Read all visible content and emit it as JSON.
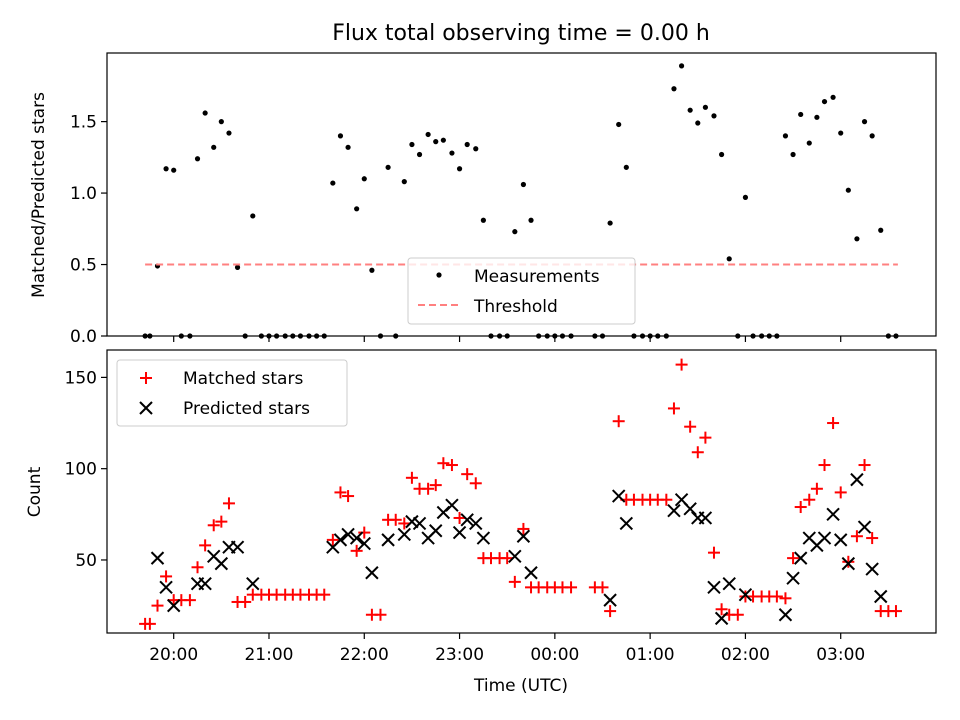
{
  "title": "Flux total observing time = 0.00 h",
  "chart_data": [
    {
      "type": "scatter",
      "title": "Flux total observing time = 0.00 h",
      "xlabel": "",
      "ylabel": "Matched/Predicted stars",
      "x_tick_labels": [
        "20:00",
        "21:00",
        "22:00",
        "23:00",
        "00:00",
        "01:00",
        "02:00",
        "03:00"
      ],
      "x_tick_hours": [
        20,
        21,
        22,
        23,
        24,
        25,
        26,
        27
      ],
      "xlim": [
        19.3,
        28.0
      ],
      "y_ticks": [
        0.0,
        0.5,
        1.0,
        1.5
      ],
      "y_tick_labels": [
        "0.0",
        "0.5",
        "1.0",
        "1.5"
      ],
      "ylim": [
        0.0,
        1.98
      ],
      "legend_position": "bottom-center",
      "series": [
        {
          "name": "Measurements",
          "style": "dot",
          "color": "#000000",
          "points": [
            [
              19.7,
              0
            ],
            [
              19.75,
              0
            ],
            [
              19.83,
              0.49
            ],
            [
              19.92,
              1.17
            ],
            [
              20.0,
              1.16
            ],
            [
              20.08,
              0
            ],
            [
              20.17,
              0
            ],
            [
              20.25,
              1.24
            ],
            [
              20.33,
              1.56
            ],
            [
              20.42,
              1.32
            ],
            [
              20.5,
              1.5
            ],
            [
              20.58,
              1.42
            ],
            [
              20.67,
              0.48
            ],
            [
              20.75,
              0
            ],
            [
              20.83,
              0.84
            ],
            [
              20.92,
              0
            ],
            [
              21.0,
              0
            ],
            [
              21.08,
              0
            ],
            [
              21.17,
              0
            ],
            [
              21.25,
              0
            ],
            [
              21.33,
              0
            ],
            [
              21.42,
              0
            ],
            [
              21.5,
              0
            ],
            [
              21.58,
              0
            ],
            [
              21.67,
              1.07
            ],
            [
              21.75,
              1.4
            ],
            [
              21.83,
              1.32
            ],
            [
              21.92,
              0.89
            ],
            [
              22.0,
              1.1
            ],
            [
              22.08,
              0.46
            ],
            [
              22.17,
              0
            ],
            [
              22.25,
              1.18
            ],
            [
              22.33,
              0
            ],
            [
              22.42,
              1.08
            ],
            [
              22.5,
              1.34
            ],
            [
              22.58,
              1.27
            ],
            [
              22.67,
              1.41
            ],
            [
              22.75,
              1.36
            ],
            [
              22.83,
              1.37
            ],
            [
              22.92,
              1.28
            ],
            [
              23.0,
              1.17
            ],
            [
              23.08,
              1.34
            ],
            [
              23.17,
              1.31
            ],
            [
              23.25,
              0.81
            ],
            [
              23.33,
              0
            ],
            [
              23.42,
              0
            ],
            [
              23.5,
              0
            ],
            [
              23.58,
              0.73
            ],
            [
              23.67,
              1.06
            ],
            [
              23.75,
              0.81
            ],
            [
              23.83,
              0
            ],
            [
              23.92,
              0
            ],
            [
              24.0,
              0
            ],
            [
              24.08,
              0
            ],
            [
              24.17,
              0
            ],
            [
              24.42,
              0
            ],
            [
              24.5,
              0
            ],
            [
              24.58,
              0.79
            ],
            [
              24.67,
              1.48
            ],
            [
              24.75,
              1.18
            ],
            [
              24.83,
              0
            ],
            [
              24.92,
              0
            ],
            [
              25.0,
              0
            ],
            [
              25.08,
              0
            ],
            [
              25.17,
              0
            ],
            [
              25.25,
              1.73
            ],
            [
              25.33,
              1.89
            ],
            [
              25.42,
              1.58
            ],
            [
              25.5,
              1.49
            ],
            [
              25.58,
              1.6
            ],
            [
              25.67,
              1.54
            ],
            [
              25.75,
              1.27
            ],
            [
              25.83,
              0.54
            ],
            [
              25.92,
              0
            ],
            [
              26.0,
              0.97
            ],
            [
              26.08,
              0
            ],
            [
              26.17,
              0
            ],
            [
              26.25,
              0
            ],
            [
              26.33,
              0
            ],
            [
              26.42,
              1.4
            ],
            [
              26.5,
              1.27
            ],
            [
              26.58,
              1.55
            ],
            [
              26.67,
              1.35
            ],
            [
              26.75,
              1.53
            ],
            [
              26.83,
              1.64
            ],
            [
              26.92,
              1.67
            ],
            [
              27.0,
              1.42
            ],
            [
              27.08,
              1.02
            ],
            [
              27.17,
              0.68
            ],
            [
              27.25,
              1.5
            ],
            [
              27.33,
              1.4
            ],
            [
              27.42,
              0.74
            ],
            [
              27.5,
              0
            ],
            [
              27.58,
              0
            ]
          ]
        },
        {
          "name": "Threshold",
          "style": "dashed-line",
          "color": "#ff8080",
          "x_range": [
            19.7,
            27.6
          ],
          "y": 0.5
        }
      ]
    },
    {
      "type": "scatter",
      "xlabel": "Time (UTC)",
      "ylabel": "Count",
      "x_tick_labels": [
        "20:00",
        "21:00",
        "22:00",
        "23:00",
        "00:00",
        "01:00",
        "02:00",
        "03:00"
      ],
      "x_tick_hours": [
        20,
        21,
        22,
        23,
        24,
        25,
        26,
        27
      ],
      "xlim": [
        19.3,
        28.0
      ],
      "y_ticks": [
        50,
        100,
        150
      ],
      "y_tick_labels": [
        "50",
        "100",
        "150"
      ],
      "ylim": [
        10,
        165
      ],
      "legend_position": "top-left",
      "series": [
        {
          "name": "Matched stars",
          "style": "plus",
          "color": "#ff0000",
          "points": [
            [
              19.7,
              15
            ],
            [
              19.75,
              15
            ],
            [
              19.83,
              25
            ],
            [
              19.92,
              41
            ],
            [
              20.0,
              28
            ],
            [
              20.08,
              28
            ],
            [
              20.17,
              28
            ],
            [
              20.25,
              46
            ],
            [
              20.33,
              58
            ],
            [
              20.42,
              69
            ],
            [
              20.5,
              71
            ],
            [
              20.58,
              81
            ],
            [
              20.67,
              27
            ],
            [
              20.75,
              27
            ],
            [
              20.83,
              31
            ],
            [
              20.92,
              31
            ],
            [
              21.0,
              31
            ],
            [
              21.08,
              31
            ],
            [
              21.17,
              31
            ],
            [
              21.25,
              31
            ],
            [
              21.33,
              31
            ],
            [
              21.42,
              31
            ],
            [
              21.5,
              31
            ],
            [
              21.58,
              31
            ],
            [
              21.67,
              61
            ],
            [
              21.75,
              87
            ],
            [
              21.83,
              85
            ],
            [
              21.92,
              55
            ],
            [
              22.0,
              65
            ],
            [
              22.08,
              20
            ],
            [
              22.17,
              20
            ],
            [
              22.25,
              72
            ],
            [
              22.33,
              72
            ],
            [
              22.42,
              70
            ],
            [
              22.5,
              95
            ],
            [
              22.58,
              89
            ],
            [
              22.67,
              89
            ],
            [
              22.75,
              91
            ],
            [
              22.83,
              103
            ],
            [
              22.92,
              102
            ],
            [
              23.0,
              73
            ],
            [
              23.08,
              97
            ],
            [
              23.17,
              92
            ],
            [
              23.25,
              51
            ],
            [
              23.33,
              51
            ],
            [
              23.42,
              51
            ],
            [
              23.5,
              51
            ],
            [
              23.58,
              38
            ],
            [
              23.67,
              67
            ],
            [
              23.75,
              35
            ],
            [
              23.83,
              35
            ],
            [
              23.92,
              35
            ],
            [
              24.0,
              35
            ],
            [
              24.08,
              35
            ],
            [
              24.17,
              35
            ],
            [
              24.42,
              35
            ],
            [
              24.5,
              35
            ],
            [
              24.58,
              22
            ],
            [
              24.67,
              126
            ],
            [
              24.75,
              83
            ],
            [
              24.83,
              83
            ],
            [
              24.92,
              83
            ],
            [
              25.0,
              83
            ],
            [
              25.08,
              83
            ],
            [
              25.17,
              83
            ],
            [
              25.25,
              133
            ],
            [
              25.33,
              157
            ],
            [
              25.42,
              123
            ],
            [
              25.5,
              109
            ],
            [
              25.58,
              117
            ],
            [
              25.67,
              54
            ],
            [
              25.75,
              23
            ],
            [
              25.83,
              20
            ],
            [
              25.92,
              20
            ],
            [
              26.0,
              30
            ],
            [
              26.08,
              30
            ],
            [
              26.17,
              30
            ],
            [
              26.25,
              30
            ],
            [
              26.33,
              30
            ],
            [
              26.42,
              29
            ],
            [
              26.5,
              51
            ],
            [
              26.58,
              79
            ],
            [
              26.67,
              83
            ],
            [
              26.75,
              89
            ],
            [
              26.83,
              102
            ],
            [
              26.92,
              125
            ],
            [
              27.0,
              87
            ],
            [
              27.08,
              49
            ],
            [
              27.17,
              63
            ],
            [
              27.25,
              102
            ],
            [
              27.33,
              62
            ],
            [
              27.42,
              22
            ],
            [
              27.5,
              22
            ],
            [
              27.58,
              22
            ]
          ]
        },
        {
          "name": "Predicted stars",
          "style": "x",
          "color": "#000000",
          "points": [
            [
              19.83,
              51
            ],
            [
              19.92,
              35
            ],
            [
              20.0,
              25
            ],
            [
              20.25,
              37
            ],
            [
              20.33,
              37
            ],
            [
              20.42,
              52
            ],
            [
              20.5,
              48
            ],
            [
              20.58,
              57
            ],
            [
              20.67,
              57
            ],
            [
              20.83,
              37
            ],
            [
              21.67,
              57
            ],
            [
              21.75,
              61
            ],
            [
              21.83,
              64
            ],
            [
              21.92,
              62
            ],
            [
              22.0,
              59
            ],
            [
              22.08,
              43
            ],
            [
              22.25,
              61
            ],
            [
              22.42,
              64
            ],
            [
              22.5,
              71
            ],
            [
              22.58,
              70
            ],
            [
              22.67,
              62
            ],
            [
              22.75,
              66
            ],
            [
              22.83,
              76
            ],
            [
              22.92,
              80
            ],
            [
              23.0,
              65
            ],
            [
              23.08,
              72
            ],
            [
              23.17,
              70
            ],
            [
              23.25,
              62
            ],
            [
              23.58,
              52
            ],
            [
              23.67,
              63
            ],
            [
              23.75,
              43
            ],
            [
              24.58,
              28
            ],
            [
              24.67,
              85
            ],
            [
              24.75,
              70
            ],
            [
              25.25,
              77
            ],
            [
              25.33,
              83
            ],
            [
              25.42,
              78
            ],
            [
              25.5,
              73
            ],
            [
              25.58,
              73
            ],
            [
              25.67,
              35
            ],
            [
              25.75,
              18
            ],
            [
              25.83,
              37
            ],
            [
              26.0,
              31
            ],
            [
              26.42,
              20
            ],
            [
              26.5,
              40
            ],
            [
              26.58,
              51
            ],
            [
              26.67,
              62
            ],
            [
              26.75,
              58
            ],
            [
              26.83,
              62
            ],
            [
              26.92,
              75
            ],
            [
              27.0,
              61
            ],
            [
              27.08,
              48
            ],
            [
              27.17,
              94
            ],
            [
              27.25,
              68
            ],
            [
              27.33,
              45
            ],
            [
              27.42,
              30
            ]
          ]
        }
      ]
    }
  ]
}
